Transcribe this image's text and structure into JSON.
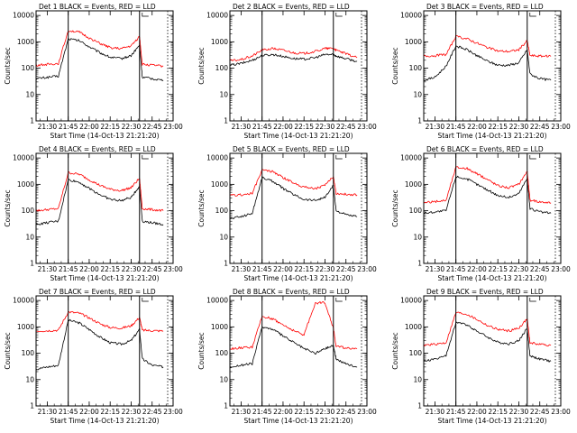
{
  "chart_data": [
    {
      "type": "line",
      "title": "Det 1  BLACK = Events, RED = LLD",
      "xlabel": "Start Time (14-Oct-13 21:21:20)",
      "ylabel": "Counts/sec",
      "x": [
        "21:22",
        "21:30",
        "21:38",
        "21:45",
        "21:53",
        "22:00",
        "22:08",
        "22:15",
        "22:23",
        "22:30",
        "22:36",
        "22:38",
        "22:45",
        "22:53"
      ],
      "series": [
        {
          "name": "Events",
          "color": "#000000",
          "values": [
            40,
            45,
            50,
            1300,
            1100,
            650,
            380,
            260,
            230,
            300,
            750,
            45,
            40,
            35
          ]
        },
        {
          "name": "LLD",
          "color": "#ff0000",
          "values": [
            130,
            140,
            150,
            2700,
            2300,
            1400,
            850,
            600,
            550,
            700,
            1600,
            140,
            130,
            120
          ]
        }
      ],
      "xticks": [
        "21:30",
        "21:45",
        "22:00",
        "22:15",
        "22:30",
        "22:45",
        "23:00"
      ],
      "yticks": [
        "1",
        "10",
        "100",
        "1000",
        "10000"
      ],
      "ylim": [
        1,
        15000
      ],
      "log_y": true
    },
    {
      "type": "line",
      "title": "Det 2  BLACK = Events, RED = LLD",
      "xlabel": "Start Time (14-Oct-13 21:21:20)",
      "ylabel": "Counts/sec",
      "x": [
        "21:22",
        "21:30",
        "21:38",
        "21:45",
        "21:53",
        "22:00",
        "22:08",
        "22:15",
        "22:23",
        "22:30",
        "22:36",
        "22:38",
        "22:45",
        "22:53"
      ],
      "series": [
        {
          "name": "Events",
          "color": "#000000",
          "values": [
            130,
            150,
            200,
            300,
            330,
            280,
            230,
            220,
            250,
            330,
            330,
            290,
            230,
            180
          ]
        },
        {
          "name": "LLD",
          "color": "#ff0000",
          "values": [
            190,
            210,
            290,
            480,
            560,
            480,
            380,
            360,
            430,
            560,
            560,
            480,
            350,
            250
          ]
        }
      ],
      "xticks": [
        "21:30",
        "21:45",
        "22:00",
        "22:15",
        "22:30",
        "22:45",
        "23:00"
      ],
      "yticks": [
        "1",
        "10",
        "100",
        "1000",
        "10000"
      ],
      "ylim": [
        1,
        15000
      ],
      "log_y": true
    },
    {
      "type": "line",
      "title": "Det 3  BLACK = Events, RED = LLD",
      "xlabel": "Start Time (14-Oct-13 21:21:20)",
      "ylabel": "Counts/sec",
      "x": [
        "21:22",
        "21:30",
        "21:38",
        "21:45",
        "21:53",
        "22:00",
        "22:08",
        "22:15",
        "22:23",
        "22:30",
        "22:36",
        "22:38",
        "22:45",
        "22:53"
      ],
      "series": [
        {
          "name": "Events",
          "color": "#000000",
          "values": [
            35,
            45,
            120,
            700,
            500,
            300,
            180,
            130,
            130,
            160,
            500,
            60,
            40,
            35
          ]
        },
        {
          "name": "LLD",
          "color": "#ff0000",
          "values": [
            290,
            300,
            330,
            1600,
            1300,
            900,
            600,
            450,
            430,
            500,
            1100,
            300,
            290,
            280
          ]
        }
      ],
      "xticks": [
        "21:30",
        "21:45",
        "22:00",
        "22:15",
        "22:30",
        "22:45",
        "23:00"
      ],
      "yticks": [
        "1",
        "10",
        "100",
        "1000",
        "10000"
      ],
      "ylim": [
        1,
        15000
      ],
      "log_y": true
    },
    {
      "type": "line",
      "title": "Det 4  BLACK = Events, RED = LLD",
      "xlabel": "Start Time (14-Oct-13 21:21:20)",
      "ylabel": "Counts/sec",
      "x": [
        "21:22",
        "21:30",
        "21:38",
        "21:45",
        "21:53",
        "22:00",
        "22:08",
        "22:15",
        "22:23",
        "22:30",
        "22:36",
        "22:38",
        "22:45",
        "22:53"
      ],
      "series": [
        {
          "name": "Events",
          "color": "#000000",
          "values": [
            30,
            35,
            40,
            1500,
            1200,
            700,
            400,
            270,
            240,
            320,
            850,
            40,
            35,
            30
          ]
        },
        {
          "name": "LLD",
          "color": "#ff0000",
          "values": [
            100,
            110,
            120,
            2800,
            2400,
            1500,
            900,
            650,
            580,
            750,
            1700,
            120,
            110,
            100
          ]
        }
      ],
      "xticks": [
        "21:30",
        "21:45",
        "22:00",
        "22:15",
        "22:30",
        "22:45",
        "23:00"
      ],
      "yticks": [
        "1",
        "10",
        "100",
        "1000",
        "10000"
      ],
      "ylim": [
        1,
        15000
      ],
      "log_y": true
    },
    {
      "type": "line",
      "title": "Det 5  BLACK = Events, RED = LLD",
      "xlabel": "Start Time (14-Oct-13 21:21:20)",
      "ylabel": "Counts/sec",
      "x": [
        "21:22",
        "21:30",
        "21:38",
        "21:45",
        "21:53",
        "22:00",
        "22:08",
        "22:15",
        "22:23",
        "22:30",
        "22:36",
        "22:38",
        "22:45",
        "22:53"
      ],
      "series": [
        {
          "name": "Events",
          "color": "#000000",
          "values": [
            50,
            60,
            80,
            1800,
            1300,
            700,
            400,
            270,
            250,
            320,
            900,
            100,
            70,
            60
          ]
        },
        {
          "name": "LLD",
          "color": "#ff0000",
          "values": [
            380,
            400,
            450,
            3500,
            3000,
            1800,
            1100,
            800,
            700,
            900,
            2000,
            450,
            420,
            400
          ]
        }
      ],
      "xticks": [
        "21:30",
        "21:45",
        "22:00",
        "22:15",
        "22:30",
        "22:45",
        "23:00"
      ],
      "yticks": [
        "1",
        "10",
        "100",
        "1000",
        "10000"
      ],
      "ylim": [
        1,
        15000
      ],
      "log_y": true
    },
    {
      "type": "line",
      "title": "Det 6  BLACK = Events, RED = LLD",
      "xlabel": "Start Time (14-Oct-13 21:21:20)",
      "ylabel": "Counts/sec",
      "x": [
        "21:22",
        "21:30",
        "21:38",
        "21:45",
        "21:53",
        "22:00",
        "22:08",
        "22:15",
        "22:23",
        "22:30",
        "22:36",
        "22:38",
        "22:45",
        "22:53"
      ],
      "series": [
        {
          "name": "Events",
          "color": "#000000",
          "values": [
            80,
            90,
            100,
            2000,
            1600,
            1000,
            600,
            380,
            320,
            450,
            1700,
            120,
            90,
            80
          ]
        },
        {
          "name": "LLD",
          "color": "#ff0000",
          "values": [
            200,
            220,
            250,
            4500,
            4000,
            2500,
            1500,
            900,
            750,
            1000,
            3200,
            250,
            220,
            200
          ]
        }
      ],
      "xticks": [
        "21:30",
        "21:45",
        "22:00",
        "22:15",
        "22:30",
        "22:45",
        "23:00"
      ],
      "yticks": [
        "1",
        "10",
        "100",
        "1000",
        "10000"
      ],
      "ylim": [
        1,
        15000
      ],
      "log_y": true
    },
    {
      "type": "line",
      "title": "Det 7  BLACK = Events, RED = LLD",
      "xlabel": "Start Time (14-Oct-13 21:21:20)",
      "ylabel": "Counts/sec",
      "x": [
        "21:22",
        "21:30",
        "21:38",
        "21:45",
        "21:53",
        "22:00",
        "22:08",
        "22:15",
        "22:23",
        "22:30",
        "22:36",
        "22:38",
        "22:45",
        "22:53"
      ],
      "series": [
        {
          "name": "Events",
          "color": "#000000",
          "values": [
            25,
            30,
            35,
            1800,
            1400,
            800,
            400,
            250,
            220,
            300,
            800,
            60,
            35,
            30
          ]
        },
        {
          "name": "LLD",
          "color": "#ff0000",
          "values": [
            700,
            720,
            750,
            3700,
            3300,
            2200,
            1300,
            950,
            900,
            1100,
            2300,
            750,
            720,
            700
          ]
        }
      ],
      "xticks": [
        "21:30",
        "21:45",
        "22:00",
        "22:15",
        "22:30",
        "22:45",
        "23:00"
      ],
      "yticks": [
        "1",
        "10",
        "100",
        "1000",
        "10000"
      ],
      "ylim": [
        1,
        15000
      ],
      "log_y": true
    },
    {
      "type": "line",
      "title": "Det 8  BLACK = Events, RED = LLD",
      "xlabel": "Start Time (14-Oct-13 21:21:20)",
      "ylabel": "Counts/sec",
      "x": [
        "21:22",
        "21:30",
        "21:38",
        "21:45",
        "21:53",
        "22:00",
        "22:08",
        "22:15",
        "22:23",
        "22:30",
        "22:36",
        "22:38",
        "22:45",
        "22:53"
      ],
      "series": [
        {
          "name": "Events",
          "color": "#000000",
          "values": [
            30,
            35,
            40,
            1000,
            800,
            450,
            250,
            150,
            100,
            150,
            200,
            60,
            40,
            30
          ]
        },
        {
          "name": "LLD",
          "color": "#ff0000",
          "values": [
            150,
            160,
            170,
            2500,
            2000,
            1200,
            700,
            500,
            8000,
            8500,
            900,
            180,
            160,
            150
          ]
        }
      ],
      "xticks": [
        "21:30",
        "21:45",
        "22:00",
        "22:15",
        "22:30",
        "22:45",
        "23:00"
      ],
      "yticks": [
        "1",
        "10",
        "100",
        "1000",
        "10000"
      ],
      "ylim": [
        1,
        15000
      ],
      "log_y": true
    },
    {
      "type": "line",
      "title": "Det 9  BLACK = Events, RED = LLD",
      "xlabel": "Start Time (14-Oct-13 21:21:20)",
      "ylabel": "Counts/sec",
      "x": [
        "21:22",
        "21:30",
        "21:38",
        "21:45",
        "21:53",
        "22:00",
        "22:08",
        "22:15",
        "22:23",
        "22:30",
        "22:36",
        "22:38",
        "22:45",
        "22:53"
      ],
      "series": [
        {
          "name": "Events",
          "color": "#000000",
          "values": [
            50,
            60,
            80,
            1500,
            1200,
            700,
            400,
            260,
            230,
            300,
            900,
            80,
            60,
            50
          ]
        },
        {
          "name": "LLD",
          "color": "#ff0000",
          "values": [
            200,
            220,
            250,
            3500,
            3000,
            1900,
            1100,
            800,
            700,
            900,
            2000,
            250,
            220,
            200
          ]
        }
      ],
      "xticks": [
        "21:30",
        "21:45",
        "22:00",
        "22:15",
        "22:30",
        "22:45",
        "23:00"
      ],
      "yticks": [
        "1",
        "10",
        "100",
        "1000",
        "10000"
      ],
      "ylim": [
        1,
        15000
      ],
      "log_y": true
    }
  ]
}
